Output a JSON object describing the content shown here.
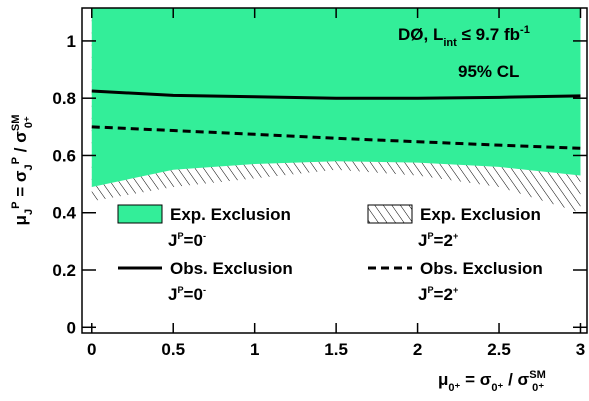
{
  "chart_data": {
    "type": "line",
    "annotation": [
      "DØ, L",
      "int",
      " ≤ 9.7 fb",
      "-1"
    ],
    "annotation2": "95% CL",
    "x_label": [
      "μ",
      "0⁺",
      " = σ",
      "0⁺",
      " / σ",
      "SM",
      "0⁺"
    ],
    "y_label": [
      "μ",
      "J",
      "P",
      " = σ",
      "J",
      "P",
      " / σ",
      "SM",
      "0⁺"
    ],
    "x": [
      0,
      0.5,
      1,
      1.5,
      2,
      2.5,
      3
    ],
    "xlim": [
      -0.06,
      3.04
    ],
    "ylim": [
      -0.02,
      1.115
    ],
    "xticks": [
      0,
      0.5,
      1,
      1.5,
      2,
      2.5,
      3
    ],
    "yticks": [
      0,
      0.2,
      0.4,
      0.6,
      0.8,
      1
    ],
    "series": [
      {
        "name": "Exp. Exclusion",
        "state": [
          "J",
          "P",
          "=0",
          "-"
        ],
        "kind": "area",
        "color": "#33ee99",
        "values": [
          0.49,
          0.55,
          0.57,
          0.58,
          0.575,
          0.56,
          0.53
        ]
      },
      {
        "name": "Exp. Exclusion",
        "state": [
          "J",
          "P",
          "=2",
          "+"
        ],
        "kind": "hatch",
        "color": "#000000",
        "values": [
          0.44,
          0.49,
          0.52,
          0.55,
          0.53,
          0.49,
          0.4
        ]
      },
      {
        "name": "Obs. Exclusion",
        "state": [
          "J",
          "P",
          "=0",
          "-"
        ],
        "kind": "solid",
        "color": "#000000",
        "values": [
          0.825,
          0.81,
          0.805,
          0.8,
          0.8,
          0.803,
          0.808
        ]
      },
      {
        "name": "Obs. Exclusion",
        "state": [
          "J",
          "P",
          "=2",
          "+"
        ],
        "kind": "dashed",
        "color": "#000000",
        "values": [
          0.7,
          0.687,
          0.674,
          0.66,
          0.648,
          0.636,
          0.625
        ]
      }
    ]
  }
}
